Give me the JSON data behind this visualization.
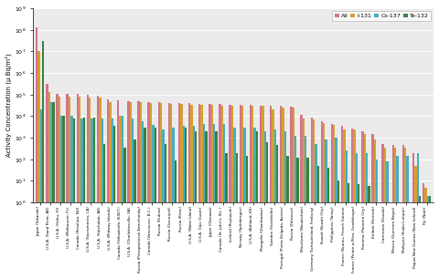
{
  "stations": [
    "Japan (Takasaki)",
    "U.S.A. (Sand Point, AK)",
    "U.S.A. (Oahu, HI)",
    "U.S.A. (Melbourne, FL)",
    "Canada (Resolute, NU)",
    "U.S.A. (Sacramento, CA)",
    "U.S.A. (Satchabot, AK)",
    "U.S.A. (Midway Islands)",
    "Canada (Yellowknife, N.W.T.)",
    "U.S.A. (Charlottesville, VA)",
    "Russia (Petropavlovsk-Kamchatsky)",
    "Canada (Vancouver, B.C.)",
    "Russia (Dubna)",
    "Russia (Ussuriysk)",
    "Russia (Kirov)",
    "U.S.A. (Wake Island)",
    "U.S.A. (Upi, Guam)",
    "Japan (Okinawa)",
    "Canada (St. John's, N.L.)",
    "Iceland (Reykjavik)",
    "Norway (Spitsbergen)",
    "U.S.A. (Ashland, KS)",
    "Mongolia (Ulaanbaatar)",
    "Sweden (Stockholm)",
    "Portugal (Ponta Delgada, Azores)",
    "Russia (Zalesovo)",
    "Mauritania (Nouakchott)",
    "Germany (Schauinsland, Freiburg)",
    "Kuwait (Kuwait City)",
    "Philippines (Tanay)",
    "France (Kourou, French Guiana)",
    "France (Pointe-a-Pitre, Guadeloupe)",
    "Panama (Panama City)",
    "Kiribati (Kirimati)",
    "Cameroon (Douala)",
    "Mexico (Guerrero Negro)",
    "Malaysia (Kuala Lumpur)",
    "Papua New Guinea (New Ireland)",
    "Fiji (Nadi)"
  ],
  "All": [
    130000000.0,
    320000.0,
    110000.0,
    110000.0,
    105000.0,
    100000.0,
    85000.0,
    60000.0,
    55000.0,
    50000.0,
    48000.0,
    45000.0,
    45000.0,
    42000.0,
    42000.0,
    40000.0,
    38000.0,
    38000.0,
    38000.0,
    35000.0,
    35000.0,
    35000.0,
    32000.0,
    30000.0,
    30000.0,
    28000.0,
    12000.0,
    9000.0,
    6000.0,
    4500.0,
    3500.0,
    2800.0,
    2000.0,
    1500.0,
    500.0,
    450.0,
    450.0,
    200.0,
    8.0
  ],
  "I131": [
    10000000.0,
    130000.0,
    80000.0,
    80000.0,
    80000.0,
    75000.0,
    70000.0,
    45000.0,
    10000.0,
    45000.0,
    45000.0,
    40000.0,
    40000.0,
    38000.0,
    38000.0,
    35000.0,
    35000.0,
    35000.0,
    32000.0,
    32000.0,
    32000.0,
    32000.0,
    30000.0,
    20000.0,
    25000.0,
    25000.0,
    8000.0,
    7000.0,
    5000.0,
    4000.0,
    2500.0,
    2500.0,
    1500.0,
    800.0,
    350.0,
    350.0,
    350.0,
    50.0,
    5.0
  ],
  "Cs137": [
    20000.0,
    45000.0,
    10000.0,
    10000.0,
    8000.0,
    8000.0,
    8000.0,
    8000.0,
    10000.0,
    8000.0,
    6000.0,
    4000.0,
    2500.0,
    3000.0,
    3500.0,
    3500.0,
    4500.0,
    4500.0,
    4500.0,
    3000.0,
    3000.0,
    3000.0,
    2000.0,
    2500.0,
    2000.0,
    1200.0,
    1200.0,
    500.0,
    800.0,
    1000.0,
    250.0,
    200.0,
    200.0,
    100.0,
    80.0,
    150.0,
    150.0,
    200.0,
    2.0
  ],
  "Te132": [
    30000000.0,
    45000.0,
    10000.0,
    8000.0,
    9000.0,
    9000.0,
    500.0,
    3500.0,
    350.0,
    800.0,
    3000.0,
    3000.0,
    500.0,
    90.0,
    3000.0,
    2000.0,
    2000.0,
    2000.0,
    200.0,
    200.0,
    150.0,
    2000.0,
    600.0,
    450.0,
    150.0,
    120.0,
    120.0,
    50.0,
    40.0,
    10.0,
    8.0,
    7.0,
    6.0,
    1.0,
    0.5,
    0.3,
    0.3,
    2.0,
    2.0
  ],
  "color_All": "#d4748c",
  "color_I131": "#d4a030",
  "color_Cs137": "#45aec0",
  "color_Te132": "#3a8040",
  "ylabel": "Activity Concentration (μ Bq/m²)",
  "ylim_min": 1.0,
  "ylim_max": 1000000000.0,
  "legend_labels": [
    "All",
    "I-131",
    "Cs-137",
    "Te-132"
  ],
  "bg_color": "#ebebeb"
}
